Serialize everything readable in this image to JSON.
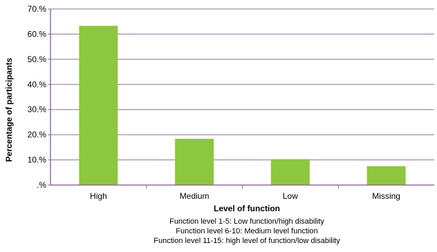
{
  "chart_data": {
    "type": "bar",
    "categories": [
      "High",
      "Medium",
      "Low",
      "Missing"
    ],
    "values": [
      63.3,
      18.4,
      10.3,
      7.5
    ],
    "ylim": [
      0,
      70
    ],
    "yticks": [
      0,
      10,
      20,
      30,
      40,
      50,
      60,
      70
    ],
    "ytick_labels": [
      ".%",
      "10.%",
      "20.%",
      "30.%",
      "40.%",
      "50.%",
      "60.%",
      "70.%"
    ],
    "xlabel": "Level of function",
    "ylabel": "Percentage of participants",
    "notes": [
      "Function level 1-5: Low function/high disability",
      "Function level 6-10: Medium level function",
      "Function level 11-15: high level of function/low disability"
    ],
    "bar_color": "#8dc63f",
    "axis_color": "#8e6fa0",
    "grid": true,
    "grid_color": "#8e6fa0",
    "legend": "none"
  }
}
